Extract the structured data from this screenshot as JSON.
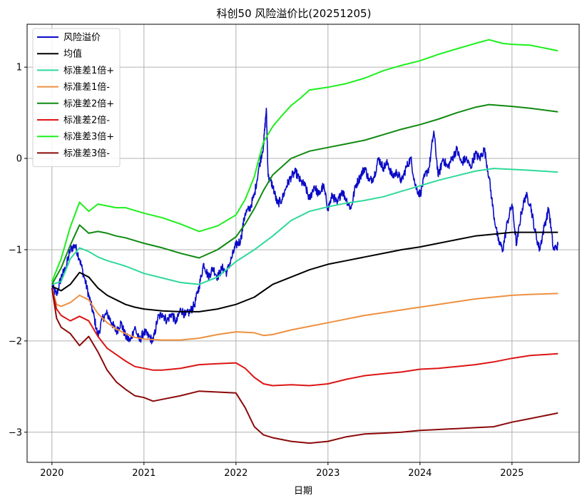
{
  "chart_data": {
    "type": "line",
    "title": "科创50 风险溢价比(20251205)",
    "xlabel": "日期",
    "ylabel": "",
    "xlim": [
      2019.73,
      2025.73
    ],
    "ylim": [
      -3.33,
      1.47
    ],
    "x_ticks": [
      {
        "value": 2020,
        "label": "2020"
      },
      {
        "value": 2021,
        "label": "2021"
      },
      {
        "value": 2022,
        "label": "2022"
      },
      {
        "value": 2023,
        "label": "2023"
      },
      {
        "value": 2024,
        "label": "2024"
      },
      {
        "value": 2025,
        "label": "2025"
      }
    ],
    "y_ticks": [
      {
        "value": 1,
        "label": "1"
      },
      {
        "value": 0,
        "label": "0"
      },
      {
        "value": -1,
        "label": "−1"
      },
      {
        "value": -2,
        "label": "−2"
      },
      {
        "value": -3,
        "label": "−3"
      }
    ],
    "grid": true,
    "legend_position": "top-left",
    "series": [
      {
        "name": "风险溢价",
        "color": "#0a0ac8",
        "x": [
          2020.0,
          2020.05,
          2020.1,
          2020.15,
          2020.2,
          2020.25,
          2020.3,
          2020.35,
          2020.4,
          2020.45,
          2020.5,
          2020.55,
          2020.6,
          2020.65,
          2020.7,
          2020.75,
          2020.8,
          2020.85,
          2020.9,
          2020.95,
          2021.0,
          2021.05,
          2021.1,
          2021.15,
          2021.2,
          2021.25,
          2021.3,
          2021.35,
          2021.4,
          2021.45,
          2021.5,
          2021.55,
          2021.6,
          2021.65,
          2021.7,
          2021.75,
          2021.8,
          2021.85,
          2021.9,
          2021.95,
          2022.0,
          2022.05,
          2022.1,
          2022.15,
          2022.2,
          2022.25,
          2022.3,
          2022.33,
          2022.35,
          2022.4,
          2022.45,
          2022.5,
          2022.55,
          2022.6,
          2022.65,
          2022.7,
          2022.75,
          2022.8,
          2022.85,
          2022.9,
          2022.95,
          2023.0,
          2023.05,
          2023.1,
          2023.15,
          2023.2,
          2023.25,
          2023.3,
          2023.35,
          2023.4,
          2023.45,
          2023.5,
          2023.55,
          2023.6,
          2023.65,
          2023.7,
          2023.75,
          2023.8,
          2023.85,
          2023.9,
          2023.95,
          2024.0,
          2024.05,
          2024.1,
          2024.15,
          2024.2,
          2024.25,
          2024.3,
          2024.35,
          2024.4,
          2024.45,
          2024.5,
          2024.55,
          2024.6,
          2024.65,
          2024.7,
          2024.75,
          2024.8,
          2024.85,
          2024.9,
          2024.95,
          2025.0,
          2025.05,
          2025.1,
          2025.15,
          2025.2,
          2025.25,
          2025.3,
          2025.35,
          2025.4,
          2025.45,
          2025.5
        ],
        "values": [
          -1.4,
          -1.5,
          -1.3,
          -1.2,
          -1.0,
          -0.95,
          -1.1,
          -1.3,
          -1.5,
          -1.7,
          -1.95,
          -1.75,
          -1.7,
          -1.8,
          -1.9,
          -1.8,
          -1.95,
          -2.0,
          -1.85,
          -2.0,
          -1.9,
          -1.95,
          -2.0,
          -1.75,
          -1.7,
          -1.78,
          -1.7,
          -1.8,
          -1.65,
          -1.72,
          -1.68,
          -1.6,
          -1.4,
          -1.15,
          -1.3,
          -1.2,
          -1.3,
          -1.2,
          -1.25,
          -1.1,
          -0.95,
          -0.9,
          -0.6,
          -0.55,
          -0.4,
          -0.1,
          0.15,
          0.55,
          -0.2,
          -0.3,
          -0.5,
          -0.45,
          -0.3,
          -0.2,
          -0.15,
          -0.25,
          -0.3,
          -0.45,
          -0.3,
          -0.4,
          -0.3,
          -0.55,
          -0.4,
          -0.5,
          -0.35,
          -0.45,
          -0.55,
          -0.3,
          -0.2,
          -0.1,
          -0.25,
          -0.2,
          0.0,
          -0.1,
          -0.05,
          -0.2,
          -0.15,
          -0.25,
          -0.1,
          0.0,
          -0.3,
          -0.4,
          -0.2,
          -0.1,
          0.3,
          -0.2,
          0.0,
          -0.1,
          0.0,
          0.1,
          -0.05,
          0.0,
          -0.1,
          0.05,
          0.0,
          0.1,
          -0.2,
          -0.6,
          -0.9,
          -1.0,
          -0.7,
          -0.5,
          -0.95,
          -0.6,
          -0.4,
          -0.5,
          -0.8,
          -1.0,
          -0.75,
          -0.55,
          -1.0,
          -0.95
        ],
        "jitter": 0.05
      },
      {
        "name": "均值",
        "color": "#000000",
        "x": [
          2020.0,
          2020.1,
          2020.2,
          2020.3,
          2020.4,
          2020.5,
          2020.6,
          2020.7,
          2020.8,
          2020.9,
          2021.0,
          2021.2,
          2021.4,
          2021.6,
          2021.8,
          2022.0,
          2022.2,
          2022.3,
          2022.4,
          2022.6,
          2022.8,
          2023.0,
          2023.2,
          2023.4,
          2023.6,
          2023.8,
          2024.0,
          2024.2,
          2024.4,
          2024.6,
          2024.8,
          2025.0,
          2025.2,
          2025.5
        ],
        "values": [
          -1.4,
          -1.45,
          -1.38,
          -1.25,
          -1.3,
          -1.42,
          -1.5,
          -1.55,
          -1.6,
          -1.63,
          -1.65,
          -1.67,
          -1.68,
          -1.68,
          -1.65,
          -1.6,
          -1.52,
          -1.45,
          -1.38,
          -1.3,
          -1.22,
          -1.16,
          -1.12,
          -1.08,
          -1.04,
          -1.0,
          -0.97,
          -0.93,
          -0.89,
          -0.85,
          -0.83,
          -0.81,
          -0.81,
          -0.81
        ]
      },
      {
        "name": "标准差1倍+",
        "color": "#2fd99a",
        "x": [
          2020.0,
          2020.1,
          2020.2,
          2020.3,
          2020.4,
          2020.5,
          2020.6,
          2020.7,
          2020.8,
          2020.9,
          2021.0,
          2021.2,
          2021.4,
          2021.6,
          2021.8,
          2022.0,
          2022.2,
          2022.4,
          2022.6,
          2022.8,
          2023.0,
          2023.2,
          2023.4,
          2023.6,
          2023.8,
          2024.0,
          2024.2,
          2024.4,
          2024.6,
          2024.8,
          2025.0,
          2025.2,
          2025.5
        ],
        "values": [
          -1.38,
          -1.35,
          -1.1,
          -0.98,
          -1.02,
          -1.08,
          -1.12,
          -1.15,
          -1.18,
          -1.22,
          -1.26,
          -1.31,
          -1.36,
          -1.38,
          -1.3,
          -1.13,
          -1.0,
          -0.85,
          -0.68,
          -0.58,
          -0.53,
          -0.49,
          -0.46,
          -0.42,
          -0.36,
          -0.3,
          -0.24,
          -0.19,
          -0.14,
          -0.11,
          -0.12,
          -0.13,
          -0.15
        ]
      },
      {
        "name": "标准差1倍-",
        "color": "#ee9040",
        "x": [
          2020.0,
          2020.05,
          2020.1,
          2020.2,
          2020.3,
          2020.4,
          2020.5,
          2020.6,
          2020.7,
          2020.8,
          2020.9,
          2021.0,
          2021.2,
          2021.4,
          2021.6,
          2021.8,
          2022.0,
          2022.2,
          2022.3,
          2022.4,
          2022.6,
          2022.8,
          2023.0,
          2023.2,
          2023.4,
          2023.6,
          2023.8,
          2024.0,
          2024.2,
          2024.4,
          2024.6,
          2024.8,
          2025.0,
          2025.2,
          2025.5
        ],
        "values": [
          -1.42,
          -1.6,
          -1.62,
          -1.58,
          -1.5,
          -1.55,
          -1.7,
          -1.8,
          -1.87,
          -1.92,
          -1.96,
          -1.98,
          -1.99,
          -1.99,
          -1.97,
          -1.93,
          -1.9,
          -1.91,
          -1.94,
          -1.93,
          -1.88,
          -1.84,
          -1.8,
          -1.76,
          -1.72,
          -1.69,
          -1.66,
          -1.63,
          -1.6,
          -1.57,
          -1.54,
          -1.52,
          -1.5,
          -1.49,
          -1.48
        ]
      },
      {
        "name": "标准差2倍+",
        "color": "#108a10",
        "x": [
          2020.0,
          2020.1,
          2020.2,
          2020.3,
          2020.4,
          2020.5,
          2020.6,
          2020.7,
          2020.8,
          2020.9,
          2021.0,
          2021.2,
          2021.4,
          2021.6,
          2021.8,
          2022.0,
          2022.1,
          2022.2,
          2022.3,
          2022.4,
          2022.6,
          2022.8,
          2023.0,
          2023.2,
          2023.4,
          2023.6,
          2023.8,
          2024.0,
          2024.2,
          2024.4,
          2024.6,
          2024.75,
          2025.0,
          2025.2,
          2025.5
        ],
        "values": [
          -1.38,
          -1.2,
          -0.95,
          -0.73,
          -0.82,
          -0.8,
          -0.82,
          -0.85,
          -0.87,
          -0.9,
          -0.93,
          -0.98,
          -1.04,
          -1.09,
          -1.0,
          -0.86,
          -0.72,
          -0.55,
          -0.35,
          -0.18,
          0.0,
          0.08,
          0.12,
          0.16,
          0.2,
          0.26,
          0.32,
          0.37,
          0.43,
          0.5,
          0.56,
          0.59,
          0.57,
          0.55,
          0.51
        ]
      },
      {
        "name": "标准差2倍-",
        "color": "#dd1515",
        "x": [
          2020.0,
          2020.05,
          2020.1,
          2020.2,
          2020.3,
          2020.4,
          2020.5,
          2020.6,
          2020.7,
          2020.8,
          2020.9,
          2021.0,
          2021.1,
          2021.2,
          2021.4,
          2021.6,
          2021.8,
          2022.0,
          2022.1,
          2022.2,
          2022.3,
          2022.4,
          2022.6,
          2022.8,
          2023.0,
          2023.2,
          2023.4,
          2023.6,
          2023.8,
          2024.0,
          2024.2,
          2024.4,
          2024.6,
          2024.8,
          2025.0,
          2025.2,
          2025.5
        ],
        "values": [
          -1.42,
          -1.65,
          -1.72,
          -1.78,
          -1.73,
          -1.78,
          -1.95,
          -2.08,
          -2.15,
          -2.22,
          -2.28,
          -2.3,
          -2.32,
          -2.32,
          -2.3,
          -2.26,
          -2.25,
          -2.24,
          -2.3,
          -2.4,
          -2.47,
          -2.49,
          -2.48,
          -2.49,
          -2.47,
          -2.42,
          -2.38,
          -2.36,
          -2.34,
          -2.31,
          -2.3,
          -2.28,
          -2.26,
          -2.23,
          -2.19,
          -2.16,
          -2.14
        ]
      },
      {
        "name": "标准差3倍+",
        "color": "#1cf01c",
        "x": [
          2020.0,
          2020.1,
          2020.2,
          2020.3,
          2020.4,
          2020.5,
          2020.6,
          2020.7,
          2020.8,
          2020.9,
          2021.0,
          2021.2,
          2021.4,
          2021.6,
          2021.8,
          2022.0,
          2022.1,
          2022.2,
          2022.25,
          2022.3,
          2022.4,
          2022.5,
          2022.6,
          2022.7,
          2022.8,
          2023.0,
          2023.2,
          2023.4,
          2023.6,
          2023.8,
          2024.0,
          2024.2,
          2024.4,
          2024.6,
          2024.75,
          2024.9,
          2025.0,
          2025.2,
          2025.5
        ],
        "values": [
          -1.35,
          -1.1,
          -0.75,
          -0.48,
          -0.58,
          -0.5,
          -0.52,
          -0.54,
          -0.54,
          -0.57,
          -0.6,
          -0.65,
          -0.72,
          -0.8,
          -0.74,
          -0.62,
          -0.45,
          -0.2,
          0.0,
          0.18,
          0.35,
          0.47,
          0.58,
          0.66,
          0.75,
          0.78,
          0.82,
          0.88,
          0.96,
          1.02,
          1.07,
          1.14,
          1.2,
          1.26,
          1.3,
          1.26,
          1.25,
          1.24,
          1.18
        ]
      },
      {
        "name": "标准差3倍-",
        "color": "#8b0a0a",
        "x": [
          2020.0,
          2020.05,
          2020.1,
          2020.2,
          2020.3,
          2020.4,
          2020.5,
          2020.6,
          2020.7,
          2020.8,
          2020.9,
          2021.0,
          2021.1,
          2021.2,
          2021.4,
          2021.6,
          2021.8,
          2022.0,
          2022.1,
          2022.2,
          2022.3,
          2022.4,
          2022.6,
          2022.8,
          2022.9,
          2023.0,
          2023.2,
          2023.4,
          2023.6,
          2023.8,
          2024.0,
          2024.2,
          2024.4,
          2024.6,
          2024.8,
          2025.0,
          2025.2,
          2025.5
        ],
        "values": [
          -1.42,
          -1.75,
          -1.85,
          -1.92,
          -2.05,
          -1.95,
          -2.12,
          -2.32,
          -2.45,
          -2.53,
          -2.6,
          -2.62,
          -2.66,
          -2.64,
          -2.6,
          -2.55,
          -2.56,
          -2.57,
          -2.73,
          -2.94,
          -3.03,
          -3.06,
          -3.1,
          -3.12,
          -3.11,
          -3.1,
          -3.05,
          -3.02,
          -3.01,
          -3.0,
          -2.98,
          -2.97,
          -2.96,
          -2.95,
          -2.94,
          -2.89,
          -2.85,
          -2.79
        ]
      }
    ]
  }
}
